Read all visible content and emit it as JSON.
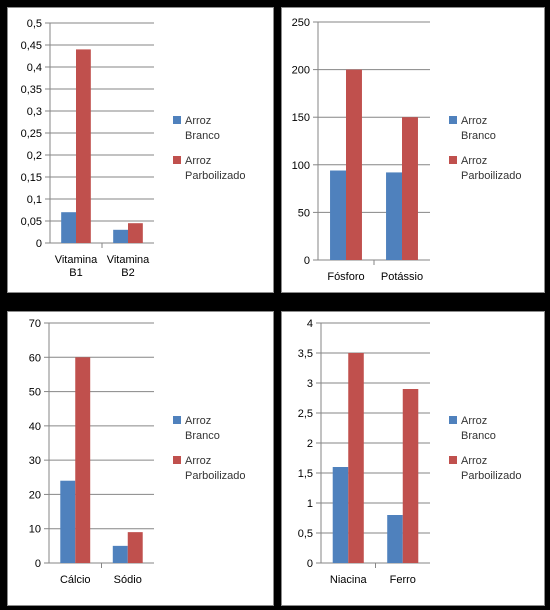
{
  "chart_data": [
    {
      "type": "bar",
      "categories": [
        "Vitamina B1",
        "Vitamina B2"
      ],
      "category_lines": [
        [
          "Vitamina",
          "B1"
        ],
        [
          "Vitamina",
          "B2"
        ]
      ],
      "series": [
        {
          "name": "Arroz Branco",
          "name_lines": [
            "Arroz",
            "Branco"
          ],
          "values": [
            0.07,
            0.03
          ]
        },
        {
          "name": "Arroz Parboilizado",
          "name_lines": [
            "Arroz",
            "Parboilizado"
          ],
          "values": [
            0.44,
            0.045
          ]
        }
      ],
      "ylim": [
        0,
        0.5
      ],
      "yticks": [
        "0",
        "0,05",
        "0,1",
        "0,15",
        "0,2",
        "0,25",
        "0,3",
        "0,35",
        "0,4",
        "0,45",
        "0,5"
      ],
      "grid": true,
      "legend": "right"
    },
    {
      "type": "bar",
      "categories": [
        "Fósforo",
        "Potássio"
      ],
      "category_lines": [
        [
          "Fósforo"
        ],
        [
          "Potássio"
        ]
      ],
      "series": [
        {
          "name": "Arroz Branco",
          "name_lines": [
            "Arroz",
            "Branco"
          ],
          "values": [
            94,
            92
          ]
        },
        {
          "name": "Arroz Parboilizado",
          "name_lines": [
            "Arroz",
            "Parboilizado"
          ],
          "values": [
            200,
            150
          ]
        }
      ],
      "ylim": [
        0,
        250
      ],
      "yticks": [
        "0",
        "50",
        "100",
        "150",
        "200",
        "250"
      ],
      "grid": true,
      "legend": "right"
    },
    {
      "type": "bar",
      "categories": [
        "Cálcio",
        "Sódio"
      ],
      "category_lines": [
        [
          "Cálcio"
        ],
        [
          "Sódio"
        ]
      ],
      "series": [
        {
          "name": "Arroz Branco",
          "name_lines": [
            "Arroz",
            "Branco"
          ],
          "values": [
            24,
            5
          ]
        },
        {
          "name": "Arroz Parboilizado",
          "name_lines": [
            "Arroz",
            "Parboilizado"
          ],
          "values": [
            60,
            9
          ]
        }
      ],
      "ylim": [
        0,
        70
      ],
      "yticks": [
        "0",
        "10",
        "20",
        "30",
        "40",
        "50",
        "60",
        "70"
      ],
      "grid": true,
      "legend": "right"
    },
    {
      "type": "bar",
      "categories": [
        "Niacina",
        "Ferro"
      ],
      "category_lines": [
        [
          "Niacina"
        ],
        [
          "Ferro"
        ]
      ],
      "series": [
        {
          "name": "Arroz Branco",
          "name_lines": [
            "Arroz",
            "Branco"
          ],
          "values": [
            1.6,
            0.8
          ]
        },
        {
          "name": "Arroz Parboilizado",
          "name_lines": [
            "Arroz",
            "Parboilizado"
          ],
          "values": [
            3.5,
            2.9
          ]
        }
      ],
      "ylim": [
        0,
        4
      ],
      "yticks": [
        "0",
        "0,5",
        "1",
        "1,5",
        "2",
        "2,5",
        "3",
        "3,5",
        "4"
      ],
      "grid": true,
      "legend": "right"
    }
  ],
  "colors": {
    "series": [
      "#4F81BD",
      "#C0504D"
    ],
    "grid": "#868686",
    "axis": "#868686"
  }
}
